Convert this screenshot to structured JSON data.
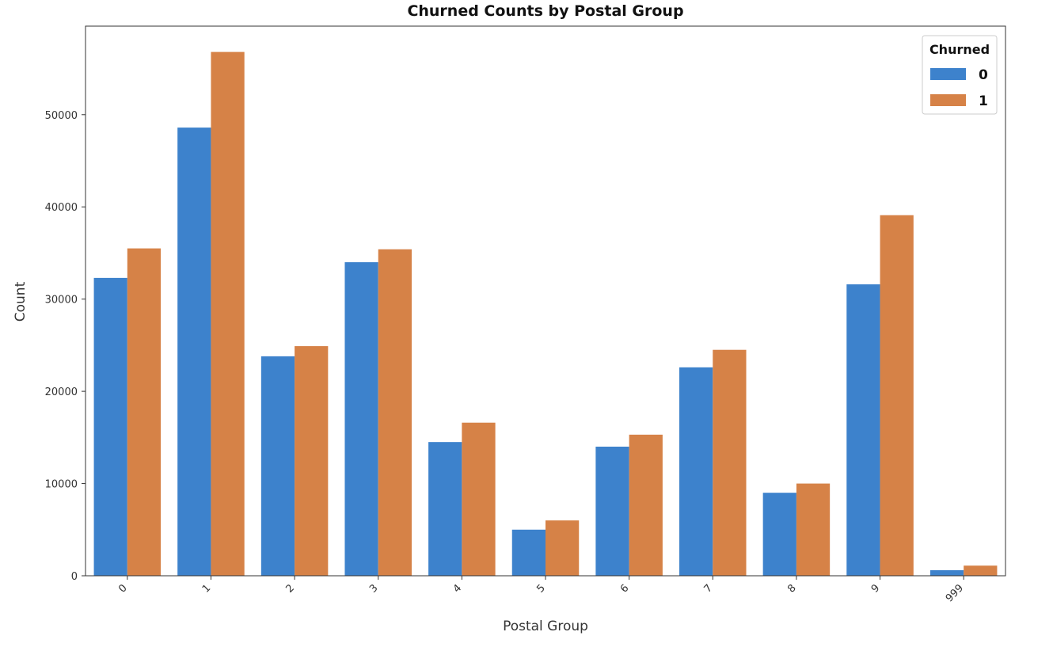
{
  "chart_data": {
    "type": "bar",
    "title": "Churned Counts by Postal Group",
    "xlabel": "Postal Group",
    "ylabel": "Count",
    "categories": [
      "0",
      "1",
      "2",
      "3",
      "4",
      "5",
      "6",
      "7",
      "8",
      "9",
      "999"
    ],
    "series": [
      {
        "name": "0",
        "color": "#3d82cc",
        "values": [
          32300,
          48600,
          23800,
          34000,
          14500,
          5000,
          14000,
          22600,
          9000,
          31600,
          600
        ]
      },
      {
        "name": "1",
        "color": "#d68247",
        "values": [
          35500,
          56800,
          24900,
          35400,
          16600,
          6000,
          15300,
          24500,
          10000,
          39100,
          1100
        ]
      }
    ],
    "ylim": [
      0,
      59600
    ],
    "yticks": [
      0,
      10000,
      20000,
      30000,
      40000,
      50000
    ],
    "grid": false,
    "legend": {
      "title": "Churned",
      "placement": "top-right"
    }
  }
}
